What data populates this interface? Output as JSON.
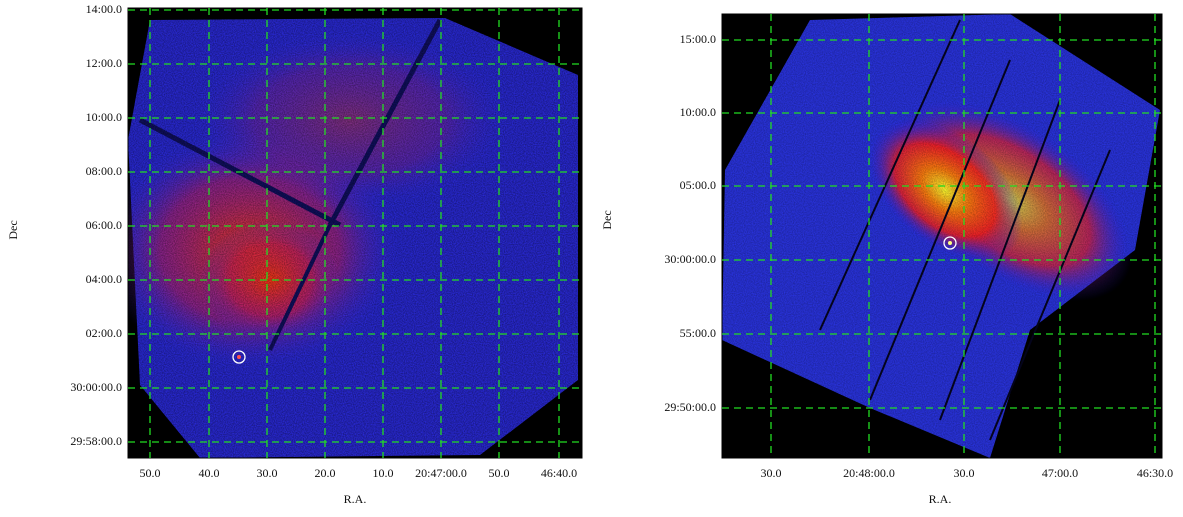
{
  "panels": [
    {
      "y_axis_label": "Dec",
      "x_axis_label": "R.A.",
      "yticks": [
        "14:00.0",
        "12:00.0",
        "10:00.0",
        "08:00.0",
        "06:00.0",
        "04:00.0",
        "02:00.0",
        "30:00:00.0",
        "29:58:00.0"
      ],
      "xticks": [
        "50.0",
        "40.0",
        "30.0",
        "20.0",
        "10.0",
        "20:47:00.0",
        "50.0",
        "46:40.0"
      ]
    },
    {
      "y_axis_label": "Dec",
      "x_axis_label": "R.A.",
      "yticks": [
        "15:00.0",
        "10:00.0",
        "05:00.0",
        "30:00:00.0",
        "55:00.0",
        "29:50:00.0"
      ],
      "xticks": [
        "30.0",
        "20:48:00.0",
        "30.0",
        "47:00.0",
        "46:30.0"
      ]
    }
  ]
}
